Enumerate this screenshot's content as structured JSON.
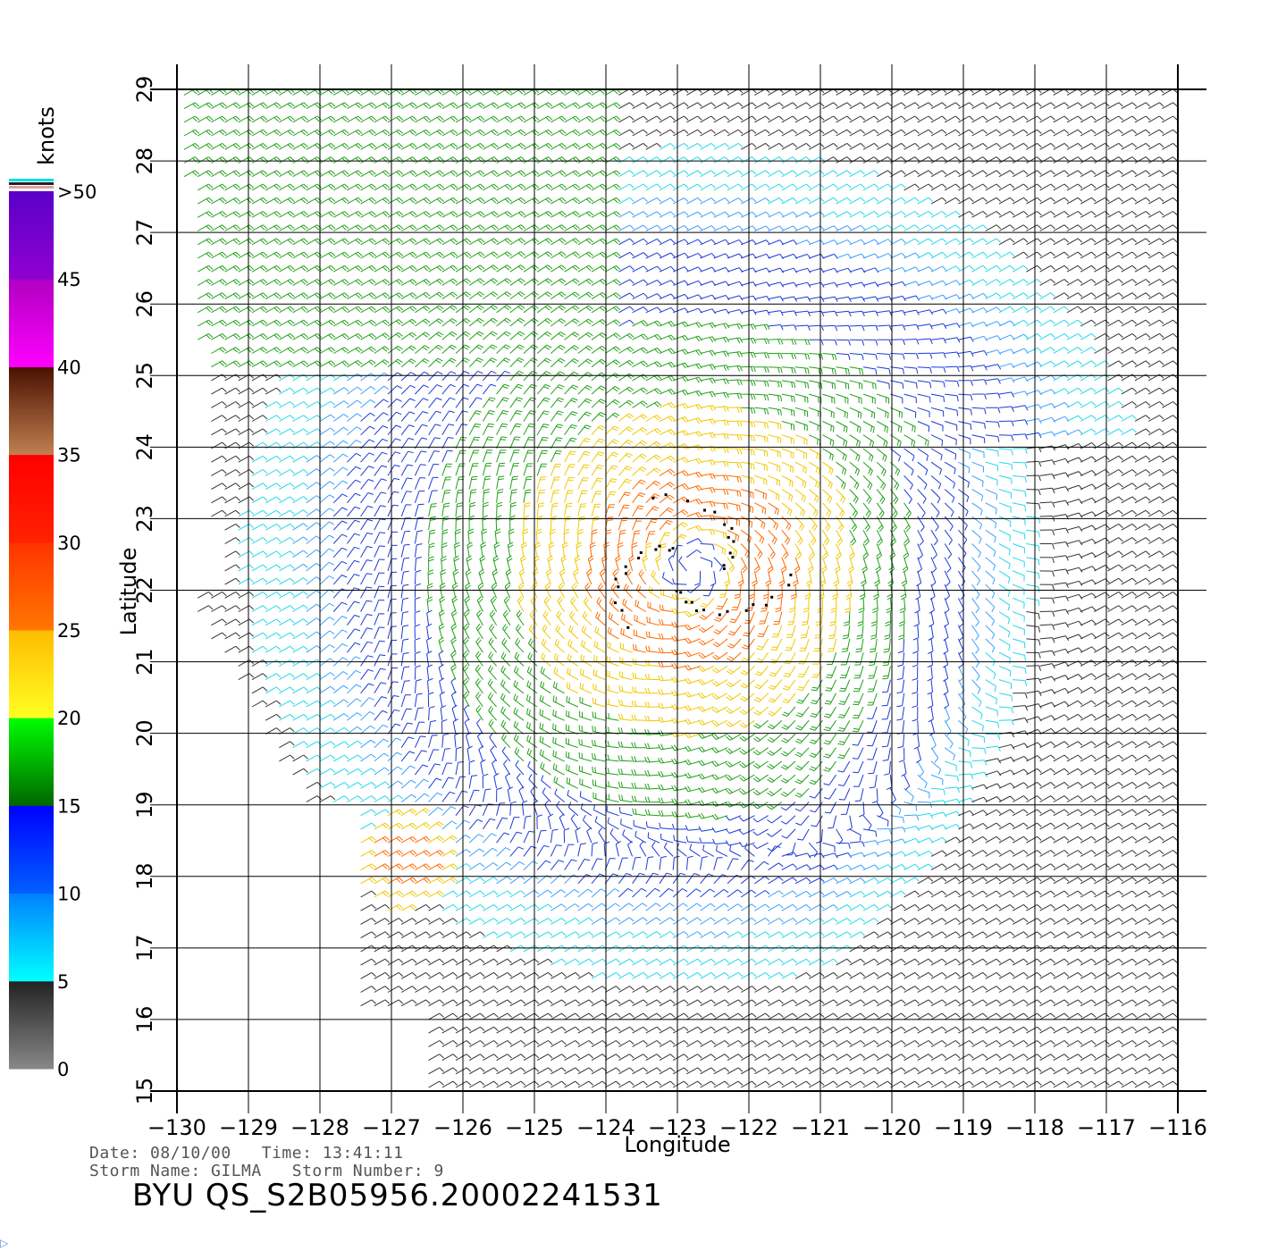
{
  "map": {
    "lon_range": [
      -130,
      -116
    ],
    "lat_range": [
      15,
      29
    ],
    "lon_ticks": [
      -130,
      -129,
      -128,
      -127,
      -126,
      -125,
      -124,
      -123,
      -122,
      -121,
      -120,
      -119,
      -118,
      -117,
      -116
    ],
    "lat_ticks": [
      15,
      16,
      17,
      18,
      19,
      20,
      21,
      22,
      23,
      24,
      25,
      26,
      27,
      28,
      29
    ],
    "x_label": "Longitude",
    "y_label": "Latitude",
    "grid": true,
    "field": "wind vectors (barbs)",
    "storm_center_approx": {
      "lon": -122.8,
      "lat": 22.3
    }
  },
  "colorbar": {
    "unit": "knots",
    "labels": [
      ">50",
      "45",
      "40",
      "35",
      "30",
      "25",
      "20",
      "15",
      "10",
      "5",
      "0"
    ],
    "label_values": [
      50,
      45,
      40,
      35,
      30,
      25,
      20,
      15,
      10,
      5,
      0
    ],
    "colors": {
      "0_5": [
        "#888888",
        "#222222"
      ],
      "5_10": [
        "#00ffff",
        "#0080ff"
      ],
      "10_15": [
        "#0060ff",
        "#0000ff"
      ],
      "15_20": [
        "#006600",
        "#00ff00"
      ],
      "20_25": [
        "#ffff22",
        "#ffbb00"
      ],
      "25_30": [
        "#ff7700",
        "#ff3300"
      ],
      "30_35": [
        "#ff2200",
        "#ff0000"
      ],
      "35_40": [
        "#c08050",
        "#4a1000"
      ],
      "40_45": [
        "#ff00ff",
        "#b000c0"
      ],
      "45_50": [
        "#9000d0",
        "#5a00c8"
      ]
    }
  },
  "info": {
    "line1": "Date: 08/10/00   Time: 13:41:11",
    "line2": "Storm Name: GILMA   Storm Number: 9",
    "product_id": "BYU QS_S2B05956.20002241531"
  }
}
